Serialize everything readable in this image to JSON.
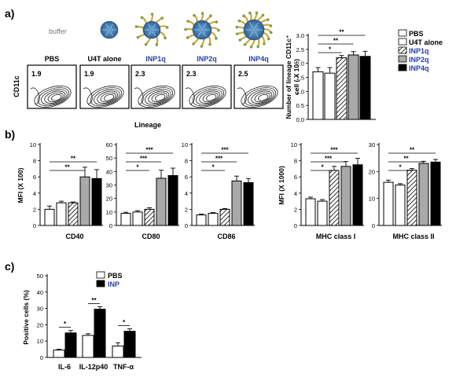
{
  "panel_letters": [
    "a)",
    "b)",
    "c)"
  ],
  "panel_a": {
    "buffer_label": "buffer",
    "flow_xlabel": "Lineage",
    "flow_ylabel": "CD11c",
    "flow_plots": [
      {
        "name": "PBS",
        "value": "1.9",
        "color": "#000000"
      },
      {
        "name": "U4T alone",
        "value": "1.9",
        "color": "#000000"
      },
      {
        "name": "INP1q",
        "value": "2.3",
        "color": "#2a3f9e"
      },
      {
        "name": "INP2q",
        "value": "2.3",
        "color": "#2a3f9e"
      },
      {
        "name": "INP4q",
        "value": "2.5",
        "color": "#2a3f9e"
      }
    ],
    "legend": [
      {
        "label": "PBS",
        "fill": "white",
        "color": "#000000"
      },
      {
        "label": "U4T alone",
        "fill": "white",
        "color": "#000000"
      },
      {
        "label": "INP1q",
        "fill": "hatch",
        "color": "#2a3f9e"
      },
      {
        "label": "INP2q",
        "fill": "grey",
        "color": "#2a3f9e"
      },
      {
        "label": "INP4q",
        "fill": "black",
        "color": "#2a3f9e"
      }
    ]
  },
  "chart_data": [
    {
      "id": "a-bar",
      "type": "bar",
      "ylabel": "Number of lineage CD11c+ cell (X 10^5)",
      "ylabel_lines": [
        "Number of lineage CD11c⁺",
        "cell ( X 10⁵)"
      ],
      "ylim": [
        0,
        3.0
      ],
      "ticks": [
        "0.0",
        "0.5",
        "1.0",
        "1.5",
        "2.0",
        "2.5",
        "3.0"
      ],
      "tick_values": [
        0,
        0.5,
        1.0,
        1.5,
        2.0,
        2.5,
        3.0
      ],
      "series": [
        "PBS",
        "U4T alone",
        "INP1q",
        "INP2q",
        "INP4q"
      ],
      "values": [
        1.7,
        1.65,
        2.2,
        2.3,
        2.25
      ],
      "errors": [
        0.15,
        0.2,
        0.08,
        0.12,
        0.18
      ],
      "sig": [
        {
          "from": 0,
          "to": 2,
          "label": "*"
        },
        {
          "from": 0,
          "to": 3,
          "label": "**"
        },
        {
          "from": 0,
          "to": 4,
          "label": "**"
        }
      ]
    },
    {
      "id": "b-cd40",
      "type": "bar",
      "xlabel": "CD40",
      "ylabel": "MFI (X 100)",
      "ylim": [
        0,
        10
      ],
      "ticks": [
        "0",
        "2",
        "4",
        "6",
        "8",
        "10"
      ],
      "tick_values": [
        0,
        2,
        4,
        6,
        8,
        10
      ],
      "values": [
        2.0,
        2.8,
        2.8,
        6.0,
        5.8
      ],
      "errors": [
        0.4,
        0.2,
        0.1,
        1.2,
        1.1
      ],
      "sig": [
        {
          "from": 0,
          "to": 3,
          "label": "**"
        },
        {
          "from": 0,
          "to": 4,
          "label": "**"
        }
      ]
    },
    {
      "id": "b-cd80",
      "type": "bar",
      "xlabel": "CD80",
      "ylim": [
        0,
        60
      ],
      "ticks": [
        "0",
        "10",
        "20",
        "30",
        "40",
        "50",
        "60"
      ],
      "tick_values": [
        0,
        10,
        20,
        30,
        40,
        50,
        60
      ],
      "values": [
        9,
        10,
        12,
        35,
        37
      ],
      "errors": [
        0.8,
        1.0,
        1.2,
        6.0,
        5.5
      ],
      "sig": [
        {
          "from": 0,
          "to": 2,
          "label": "*"
        },
        {
          "from": 0,
          "to": 3,
          "label": "***"
        },
        {
          "from": 0,
          "to": 4,
          "label": "***"
        }
      ]
    },
    {
      "id": "b-cd86",
      "type": "bar",
      "xlabel": "CD86",
      "ylim": [
        0,
        10
      ],
      "ticks": [
        "0",
        "2",
        "4",
        "6",
        "8",
        "10"
      ],
      "tick_values": [
        0,
        2,
        4,
        6,
        8,
        10
      ],
      "values": [
        1.3,
        1.5,
        2.0,
        5.5,
        5.3
      ],
      "errors": [
        0.1,
        0.1,
        0.1,
        0.6,
        0.5
      ],
      "sig": [
        {
          "from": 0,
          "to": 2,
          "label": "*"
        },
        {
          "from": 0,
          "to": 3,
          "label": "***"
        },
        {
          "from": 0,
          "to": 4,
          "label": "***"
        }
      ]
    },
    {
      "id": "b-mhc1",
      "type": "bar",
      "xlabel": "MHC class I",
      "ylabel": "MFI (X 1000)",
      "ylim": [
        0,
        10
      ],
      "ticks": [
        "0",
        "2",
        "4",
        "6",
        "8",
        "10"
      ],
      "tick_values": [
        0,
        2,
        4,
        6,
        8,
        10
      ],
      "values": [
        3.3,
        3.0,
        6.8,
        7.3,
        7.5
      ],
      "errors": [
        0.2,
        0.2,
        0.5,
        0.6,
        0.8
      ],
      "sig": [
        {
          "from": 0,
          "to": 2,
          "label": "*"
        },
        {
          "from": 0,
          "to": 3,
          "label": "***"
        },
        {
          "from": 0,
          "to": 4,
          "label": "***"
        }
      ]
    },
    {
      "id": "b-mhc2",
      "type": "bar",
      "xlabel": "MHC class II",
      "ylim": [
        0,
        30
      ],
      "ticks": [
        "0",
        "10",
        "20",
        "30"
      ],
      "tick_values": [
        0,
        10,
        20,
        30
      ],
      "values": [
        16,
        15,
        20.5,
        23,
        23.5
      ],
      "errors": [
        0.8,
        0.5,
        0.6,
        0.8,
        1.0
      ],
      "sig": [
        {
          "from": 0,
          "to": 2,
          "label": "*"
        },
        {
          "from": 0,
          "to": 3,
          "label": "**"
        },
        {
          "from": 0,
          "to": 4,
          "label": "**"
        }
      ]
    },
    {
      "id": "c-cyto",
      "type": "bar",
      "ylabel": "Positive cells (%)",
      "ylim": [
        0,
        50
      ],
      "ticks": [
        "0",
        "10",
        "20",
        "30",
        "40",
        "50"
      ],
      "tick_values": [
        0,
        10,
        20,
        30,
        40,
        50
      ],
      "categories": [
        "IL-6",
        "IL-12p40",
        "TNF-α"
      ],
      "series": [
        {
          "name": "PBS",
          "values": [
            4.5,
            13.5,
            7.0
          ],
          "errors": [
            0.5,
            1.0,
            2.0
          ]
        },
        {
          "name": "INP",
          "values": [
            15.0,
            29.5,
            16.0
          ],
          "errors": [
            1.5,
            1.5,
            1.5
          ]
        }
      ],
      "sig": [
        "*",
        "**",
        "*"
      ],
      "legend": [
        {
          "label": "PBS",
          "fill": "white",
          "color": "#000000"
        },
        {
          "label": "INP",
          "fill": "black",
          "color": "#2a3f9e"
        }
      ]
    }
  ]
}
